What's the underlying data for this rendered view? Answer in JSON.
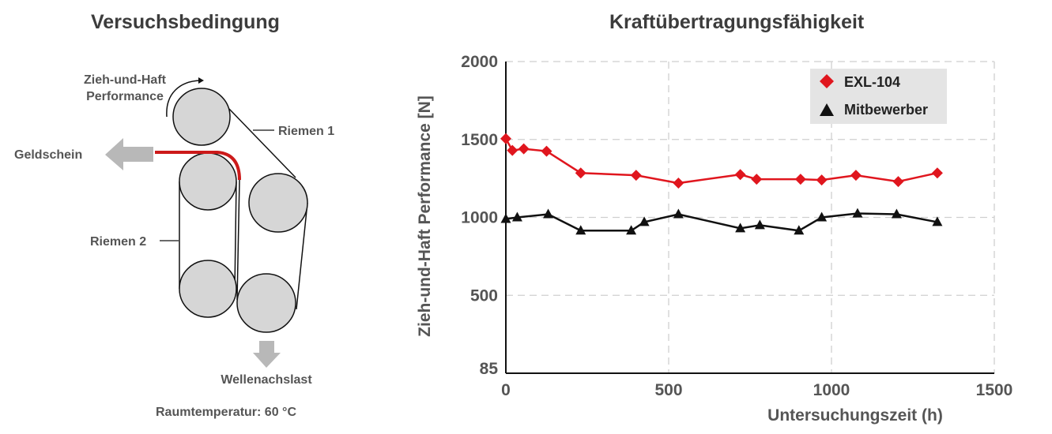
{
  "diagram": {
    "title": "Versuchsbedingung",
    "labels": {
      "performance": [
        "Zieh-und-Haft",
        "Performance"
      ],
      "belt1": "Riemen 1",
      "belt2": "Riemen 2",
      "banknote": "Geldschein",
      "shaft_load": "Wellenachslast",
      "temperature": "Raumtemperatur: 60 °C"
    },
    "colors": {
      "roller": "#d6d6d6",
      "banknote": "#cc1a1a",
      "arrow": "#b8b8b8"
    }
  },
  "chart_data": {
    "type": "line",
    "title": "Kraftübertragungsfähigkeit",
    "xlabel": "Untersuchungszeit (h)",
    "ylabel": "Zieh-und-Haft Performance [N]",
    "xlim": [
      0,
      1500
    ],
    "ylim": [
      85,
      2000
    ],
    "xticks": [
      0,
      500,
      1000,
      1500
    ],
    "yticks": [
      85,
      500,
      1000,
      1500,
      2000
    ],
    "grid": true,
    "legend_position": "top-right",
    "series": [
      {
        "name": "EXL-104",
        "marker": "diamond",
        "color": "#e0161e",
        "x": [
          0,
          20,
          55,
          125,
          230,
          400,
          530,
          720,
          770,
          905,
          970,
          1075,
          1205,
          1325
        ],
        "y": [
          1505,
          1430,
          1440,
          1425,
          1285,
          1270,
          1220,
          1275,
          1245,
          1245,
          1240,
          1270,
          1230,
          1285
        ]
      },
      {
        "name": "Mitbewerber",
        "marker": "triangle",
        "color": "#111111",
        "x": [
          0,
          35,
          130,
          230,
          385,
          425,
          530,
          720,
          780,
          900,
          970,
          1080,
          1200,
          1325
        ],
        "y": [
          990,
          1000,
          1020,
          915,
          915,
          970,
          1020,
          930,
          950,
          915,
          1000,
          1025,
          1020,
          970
        ]
      }
    ]
  }
}
